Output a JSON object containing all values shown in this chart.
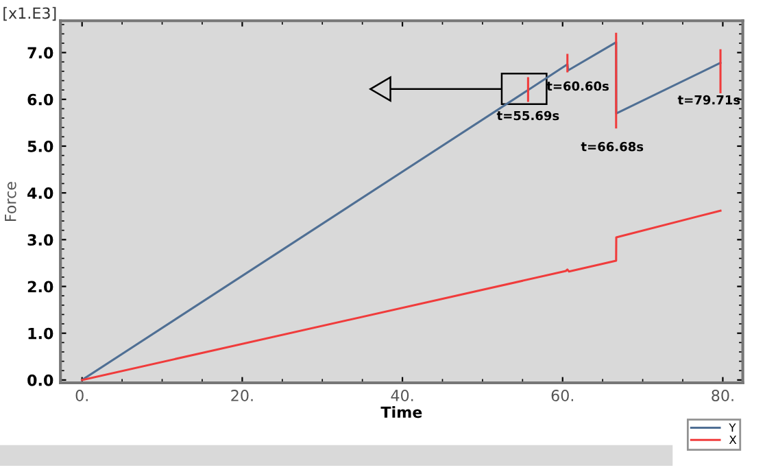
{
  "chart_data": {
    "type": "line",
    "xlabel": "Time",
    "ylabel": "Force",
    "annotations": [
      "[x1.E3]",
      {
        "text": "t=55.69s",
        "x": 55.69,
        "y": 6.2
      },
      {
        "text": "t=60.60s",
        "x": 60.6,
        "y": 6.75
      },
      {
        "text": "t=66.68s",
        "x": 66.68,
        "y": 5.7
      },
      {
        "text": "t=79.71s",
        "x": 79.71,
        "y": 6.78
      }
    ],
    "series": [
      {
        "name": "Y",
        "color": "#4f6f94",
        "x": [
          0,
          55.69,
          60.6,
          60.7,
          66.68,
          66.7,
          79.71
        ],
        "values": [
          0,
          6.2,
          6.75,
          6.62,
          7.22,
          5.7,
          6.78
        ]
      },
      {
        "name": "X",
        "color": "#f03c3c",
        "x": [
          0,
          60.4,
          60.6,
          60.8,
          66.68,
          66.7,
          79.71
        ],
        "values": [
          0,
          2.33,
          2.36,
          2.32,
          2.55,
          3.05,
          3.62
        ]
      },
      {
        "color": "#f03c3c",
        "x": [
          55.69,
          55.69,
          null,
          60.6,
          60.6,
          null,
          66.68,
          66.68,
          null,
          79.71,
          79.71
        ],
        "values": [
          5.97,
          6.45,
          null,
          6.6,
          6.95,
          null,
          5.4,
          7.4,
          null,
          6.15,
          7.05
        ]
      }
    ],
    "xlim": [
      -2.7,
      82.5
    ],
    "ylim": [
      -0.06,
      7.68
    ],
    "xticks": [
      {
        "value": 0,
        "label": "0."
      },
      {
        "value": 20,
        "label": "20."
      },
      {
        "value": 40,
        "label": "40."
      },
      {
        "value": 60,
        "label": "60."
      },
      {
        "value": 80,
        "label": "80."
      }
    ],
    "yticks": [
      {
        "value": 0,
        "label": "0.0"
      },
      {
        "value": 1,
        "label": "1.0"
      },
      {
        "value": 2,
        "label": "2.0"
      },
      {
        "value": 3,
        "label": "3.0"
      },
      {
        "value": 4,
        "label": "4.0"
      },
      {
        "value": 5,
        "label": "5.0"
      },
      {
        "value": 6,
        "label": "6.0"
      },
      {
        "value": 7,
        "label": "7.0"
      }
    ],
    "grid": false,
    "legend": "bottom right"
  }
}
